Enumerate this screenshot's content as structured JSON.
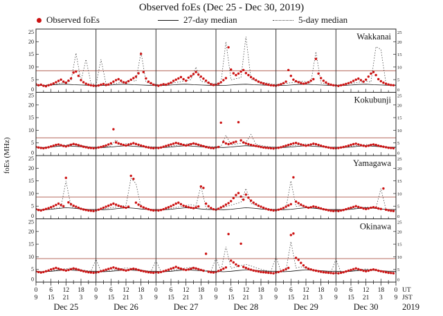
{
  "colors": {
    "observed": "#cc1111",
    "median27": "#111111",
    "median5": "#444444",
    "threshold": "#b5685c",
    "frame": "#222222",
    "day_line": "#333333"
  },
  "chart_data": {
    "type": "scatter",
    "title": "Observed foEs (Dec 25 - Dec 30, 2019)",
    "legend": {
      "observed": "Observed foEs",
      "median27": "27-day median",
      "median5": "5-day median"
    },
    "ylabel": "foEs (MHz)",
    "ylim": [
      0,
      25
    ],
    "y_ticks": [
      0,
      5,
      10,
      15,
      20,
      25
    ],
    "x_hours_total": 144,
    "x_tick_step_minor": 3,
    "x_tick_step_label": 6,
    "x_axis": {
      "ut_name": "UT",
      "jst_name": "JST",
      "year": "2019",
      "jst_offset": 9,
      "day_labels": [
        "Dec 25",
        "Dec 26",
        "Dec 27",
        "Dec 28",
        "Dec 29",
        "Dec 30"
      ],
      "ut_labels": [
        "0",
        "6",
        "12",
        "18",
        "0",
        "6",
        "12",
        "18",
        "0",
        "6",
        "12",
        "18",
        "0",
        "6",
        "12",
        "18",
        "0",
        "6",
        "12",
        "18",
        "0",
        "6",
        "12",
        "18",
        "0"
      ],
      "jst_labels": [
        "9",
        "15",
        "21",
        "3",
        "9",
        "15",
        "21",
        "3",
        "9",
        "15",
        "21",
        "3",
        "9",
        "15",
        "21",
        "3",
        "9",
        "15",
        "21",
        "3",
        "9",
        "15",
        "21",
        "3",
        "9"
      ]
    },
    "panels": [
      {
        "station": "Wakkanai",
        "threshold": 8.5,
        "observed_hourly": [
          3.2,
          2.8,
          3.0,
          2.6,
          2.4,
          2.8,
          3.1,
          3.5,
          4.0,
          4.5,
          5.0,
          4.2,
          3.8,
          4.6,
          5.5,
          7.8,
          8.2,
          6.5,
          4.8,
          4.0,
          3.4,
          3.0,
          2.8,
          2.6,
          2.5,
          2.7,
          3.0,
          3.3,
          2.9,
          3.1,
          3.6,
          4.2,
          4.8,
          5.2,
          4.6,
          4.0,
          3.8,
          4.4,
          5.0,
          5.6,
          6.2,
          7.5,
          15.2,
          8.0,
          5.5,
          4.2,
          3.6,
          3.0,
          2.8,
          2.6,
          2.9,
          3.2,
          3.0,
          3.4,
          3.8,
          4.5,
          5.0,
          5.5,
          6.0,
          5.2,
          4.6,
          5.8,
          6.4,
          7.2,
          8.0,
          7.0,
          6.2,
          5.4,
          4.6,
          3.8,
          3.2,
          2.9,
          3.0,
          3.4,
          4.0,
          4.8,
          5.6,
          17.8,
          9.0,
          7.5,
          6.8,
          7.4,
          8.2,
          8.8,
          7.6,
          6.8,
          6.0,
          5.4,
          4.8,
          4.2,
          3.8,
          3.5,
          3.2,
          3.0,
          2.8,
          2.7,
          2.6,
          2.9,
          3.2,
          3.6,
          4.2,
          8.8,
          6.5,
          5.0,
          4.4,
          4.0,
          3.7,
          3.4,
          3.6,
          4.0,
          4.6,
          5.2,
          13.2,
          7.4,
          5.6,
          4.6,
          3.9,
          3.3,
          3.0,
          2.8,
          2.7,
          2.5,
          2.8,
          3.0,
          3.3,
          3.6,
          4.0,
          4.5,
          5.0,
          5.4,
          4.8,
          4.2,
          5.0,
          6.2,
          7.4,
          8.0,
          6.8,
          5.2,
          4.4,
          3.8,
          3.4,
          3.1,
          2.9,
          2.8
        ],
        "median27_3h": [
          2.8,
          2.7,
          2.9,
          3.1,
          3.2,
          3.0,
          2.9,
          2.8,
          2.8,
          2.7,
          2.9,
          3.1,
          3.2,
          3.0,
          2.9,
          2.8,
          2.8,
          2.7,
          2.9,
          3.1,
          3.2,
          3.0,
          2.9,
          2.8,
          2.8,
          2.7,
          2.9,
          3.1,
          3.2,
          3.0,
          2.9,
          2.8,
          2.8,
          2.7,
          2.9,
          3.1,
          3.2,
          3.0,
          2.9,
          2.8,
          2.8,
          2.7,
          2.9,
          3.1,
          3.2,
          3.0,
          2.9,
          2.8,
          2.8
        ],
        "median5_2h": [
          3.0,
          2.8,
          2.9,
          3.1,
          3.3,
          3.6,
          4.0,
          4.6,
          15.5,
          4.4,
          13.0,
          3.6,
          3.0,
          13.0,
          3.4,
          3.2,
          3.5,
          3.9,
          4.3,
          4.7,
          4.4,
          16.0,
          4.0,
          3.4,
          3.1,
          3.0,
          3.3,
          3.6,
          3.9,
          4.2,
          4.6,
          5.0,
          10.0,
          4.4,
          3.9,
          3.5,
          3.3,
          3.7,
          20.0,
          4.9,
          5.4,
          5.8,
          22.0,
          5.2,
          4.6,
          4.1,
          3.7,
          3.4,
          3.0,
          3.2,
          3.5,
          3.8,
          4.1,
          4.4,
          4.2,
          3.9,
          16.0,
          3.7,
          3.4,
          3.1,
          2.9,
          3.0,
          3.2,
          3.5,
          3.8,
          4.1,
          4.4,
          4.1,
          18.0,
          17.0,
          3.4,
          3.0,
          2.9
        ]
      },
      {
        "station": "Kokubunji",
        "threshold": 7.0,
        "observed_hourly": [
          3.4,
          3.2,
          3.0,
          2.9,
          3.1,
          3.3,
          3.6,
          3.9,
          4.2,
          4.4,
          4.1,
          3.8,
          3.6,
          3.9,
          4.3,
          4.6,
          4.4,
          4.1,
          3.8,
          3.5,
          3.3,
          3.1,
          3.0,
          2.9,
          3.0,
          3.2,
          3.4,
          3.7,
          4.0,
          4.4,
          4.8,
          10.4,
          5.2,
          4.8,
          4.5,
          4.2,
          4.0,
          4.3,
          4.6,
          4.9,
          4.6,
          4.3,
          4.0,
          3.7,
          3.4,
          3.2,
          3.0,
          2.9,
          3.1,
          3.0,
          3.2,
          3.5,
          3.8,
          4.1,
          4.4,
          4.7,
          5.0,
          4.8,
          4.5,
          4.2,
          4.0,
          4.2,
          4.5,
          4.8,
          4.6,
          4.3,
          4.0,
          3.7,
          3.4,
          3.2,
          3.0,
          2.9,
          3.2,
          3.4,
          13.0,
          5.4,
          4.8,
          4.5,
          4.8,
          5.2,
          5.5,
          13.2,
          6.0,
          5.2,
          4.8,
          4.5,
          4.2,
          4.0,
          3.8,
          3.6,
          3.4,
          3.2,
          3.1,
          3.0,
          2.9,
          2.8,
          3.0,
          3.1,
          3.3,
          3.6,
          3.9,
          4.2,
          4.5,
          4.8,
          5.0,
          4.7,
          4.4,
          4.1,
          3.9,
          4.1,
          4.4,
          4.7,
          4.5,
          4.2,
          3.9,
          3.6,
          3.4,
          3.2,
          3.0,
          2.9,
          2.9,
          3.0,
          3.2,
          3.4,
          3.6,
          3.9,
          4.2,
          4.5,
          4.7,
          4.4,
          4.1,
          3.9,
          3.7,
          3.9,
          4.2,
          4.4,
          4.2,
          3.9,
          3.7,
          3.5,
          3.3,
          3.1,
          3.0,
          2.9
        ],
        "median27_3h": [
          3.3,
          3.2,
          3.4,
          3.7,
          3.9,
          3.7,
          3.5,
          3.3,
          3.3,
          3.2,
          3.4,
          3.7,
          3.9,
          3.7,
          3.5,
          3.3,
          3.3,
          3.2,
          3.4,
          3.7,
          3.9,
          3.7,
          3.5,
          3.3,
          3.3,
          3.2,
          3.4,
          3.7,
          3.9,
          3.7,
          3.5,
          3.3,
          3.3,
          3.2,
          3.4,
          3.7,
          3.9,
          3.7,
          3.5,
          3.3,
          3.3,
          3.2,
          3.4,
          3.7,
          3.9,
          3.7,
          3.5,
          3.3,
          3.3
        ],
        "median5_2h": [
          3.4,
          3.2,
          3.1,
          3.3,
          3.6,
          3.9,
          4.2,
          4.5,
          4.3,
          4.0,
          3.7,
          3.4,
          3.2,
          3.3,
          3.5,
          3.8,
          6.2,
          4.4,
          4.7,
          4.9,
          4.6,
          4.2,
          3.8,
          3.5,
          3.3,
          3.2,
          3.4,
          3.7,
          4.0,
          4.3,
          4.6,
          4.8,
          4.5,
          4.1,
          3.8,
          3.5,
          3.4,
          3.6,
          8.0,
          4.3,
          4.6,
          4.9,
          5.2,
          8.4,
          4.4,
          4.0,
          3.7,
          3.4,
          3.2,
          3.3,
          3.5,
          3.8,
          4.1,
          4.4,
          4.6,
          4.4,
          4.1,
          3.8,
          3.5,
          3.3,
          3.1,
          3.2,
          3.4,
          3.6,
          3.9,
          4.2,
          4.4,
          4.2,
          3.9,
          3.6,
          3.4,
          3.2,
          3.1
        ]
      },
      {
        "station": "Yamagawa",
        "threshold": 8.6,
        "observed_hourly": [
          3.8,
          3.5,
          3.3,
          3.6,
          3.9,
          4.2,
          4.6,
          5.0,
          5.5,
          6.0,
          5.5,
          5.0,
          16.2,
          6.5,
          5.8,
          5.2,
          4.8,
          4.4,
          4.0,
          3.7,
          3.5,
          3.3,
          3.2,
          3.1,
          3.3,
          3.6,
          4.0,
          4.4,
          4.8,
          5.2,
          5.6,
          6.0,
          5.6,
          5.2,
          4.9,
          4.6,
          4.4,
          4.8,
          17.0,
          15.8,
          6.4,
          5.6,
          5.0,
          4.5,
          4.1,
          3.8,
          3.5,
          3.3,
          3.4,
          3.3,
          3.5,
          3.8,
          4.2,
          4.6,
          5.0,
          5.5,
          6.0,
          6.4,
          5.8,
          5.2,
          4.9,
          4.6,
          4.4,
          4.2,
          4.5,
          4.9,
          12.8,
          12.2,
          6.0,
          5.0,
          4.3,
          3.8,
          3.6,
          4.0,
          4.5,
          5.0,
          5.6,
          6.2,
          7.0,
          8.2,
          9.4,
          10.2,
          8.8,
          7.6,
          9.6,
          8.4,
          7.2,
          6.4,
          5.8,
          5.2,
          4.8,
          4.4,
          4.0,
          3.7,
          3.5,
          3.3,
          3.4,
          3.6,
          3.9,
          4.3,
          4.8,
          5.3,
          5.8,
          16.4,
          6.8,
          6.2,
          5.6,
          5.1,
          4.7,
          4.4,
          4.6,
          4.9,
          4.7,
          4.4,
          4.1,
          3.8,
          3.6,
          3.4,
          3.2,
          3.1,
          3.2,
          3.1,
          3.3,
          3.5,
          3.8,
          4.1,
          4.4,
          4.7,
          5.0,
          4.7,
          4.4,
          4.1,
          3.9,
          4.1,
          4.4,
          4.6,
          4.4,
          4.1,
          3.9,
          12.0,
          3.6,
          3.4,
          3.2,
          3.1
        ],
        "median27_3h": [
          3.7,
          3.6,
          3.8,
          4.1,
          4.4,
          4.2,
          3.9,
          3.7,
          3.7,
          3.6,
          3.8,
          4.1,
          4.4,
          4.2,
          3.9,
          3.7,
          3.7,
          3.6,
          3.8,
          4.1,
          4.4,
          4.2,
          3.9,
          3.7,
          3.7,
          3.6,
          3.8,
          4.1,
          4.4,
          4.2,
          3.9,
          3.7,
          3.7,
          3.6,
          3.8,
          4.1,
          4.4,
          4.2,
          3.9,
          3.7,
          3.7,
          3.6,
          3.8,
          4.1,
          4.4,
          4.2,
          3.9,
          3.7,
          3.7
        ],
        "median5_2h": [
          3.8,
          3.6,
          3.7,
          3.9,
          4.2,
          4.6,
          15.0,
          4.8,
          4.4,
          4.1,
          3.8,
          3.6,
          3.6,
          3.8,
          4.1,
          4.4,
          4.7,
          5.0,
          5.3,
          16.0,
          14.0,
          4.6,
          4.2,
          3.8,
          3.7,
          3.6,
          3.8,
          4.1,
          4.5,
          4.9,
          5.3,
          5.6,
          5.2,
          13.0,
          4.2,
          3.8,
          3.9,
          4.3,
          4.8,
          5.4,
          6.0,
          6.6,
          12.0,
          6.0,
          5.4,
          4.8,
          4.3,
          3.9,
          3.7,
          3.9,
          4.2,
          15.0,
          4.9,
          5.2,
          4.9,
          4.5,
          4.2,
          3.9,
          3.7,
          3.5,
          3.4,
          3.5,
          3.7,
          3.9,
          4.2,
          4.5,
          4.7,
          4.5,
          4.2,
          12.0,
          3.6,
          3.4,
          3.4
        ]
      },
      {
        "station": "Okinawa",
        "threshold": 9.3,
        "observed_hourly": [
          4.2,
          4.0,
          3.8,
          4.0,
          4.3,
          4.6,
          5.0,
          5.3,
          5.6,
          5.3,
          5.0,
          4.8,
          4.6,
          4.8,
          5.1,
          5.4,
          5.2,
          4.9,
          4.6,
          4.3,
          4.1,
          3.9,
          3.8,
          3.7,
          3.8,
          4.0,
          4.3,
          4.6,
          4.9,
          5.2,
          5.5,
          5.8,
          5.5,
          5.2,
          5.0,
          4.8,
          4.6,
          4.8,
          5.1,
          5.3,
          5.1,
          4.8,
          4.5,
          4.3,
          4.1,
          3.9,
          3.8,
          3.7,
          3.9,
          3.8,
          4.0,
          4.3,
          4.6,
          4.9,
          5.3,
          5.6,
          6.0,
          5.6,
          5.3,
          5.0,
          4.8,
          5.0,
          5.3,
          5.6,
          5.4,
          5.1,
          4.8,
          4.5,
          11.2,
          4.1,
          3.9,
          3.8,
          4.0,
          4.4,
          4.8,
          5.3,
          5.8,
          19.0,
          8.5,
          7.8,
          7.0,
          6.4,
          15.2,
          6.0,
          5.6,
          5.2,
          4.9,
          4.6,
          4.4,
          4.2,
          4.0,
          3.9,
          3.8,
          3.7,
          3.6,
          3.5,
          3.8,
          4.0,
          4.3,
          4.7,
          5.1,
          5.6,
          18.6,
          19.2,
          9.6,
          8.8,
          7.6,
          6.6,
          5.8,
          5.3,
          5.0,
          4.7,
          4.5,
          4.3,
          4.1,
          3.9,
          3.8,
          3.7,
          3.6,
          3.5,
          3.6,
          3.5,
          3.7,
          3.9,
          4.2,
          4.5,
          4.8,
          5.1,
          5.4,
          5.1,
          4.8,
          4.5,
          4.3,
          4.5,
          4.8,
          5.0,
          4.8,
          4.5,
          4.3,
          4.1,
          3.9,
          3.7,
          3.6,
          3.5
        ],
        "median27_3h": [
          4.3,
          4.1,
          4.3,
          4.6,
          4.9,
          4.7,
          4.5,
          4.3,
          4.3,
          4.1,
          4.3,
          4.6,
          4.9,
          4.7,
          4.5,
          4.3,
          4.3,
          4.1,
          4.3,
          4.6,
          4.9,
          4.7,
          4.5,
          4.3,
          4.3,
          4.1,
          4.3,
          4.6,
          4.9,
          4.7,
          4.5,
          4.3,
          4.3,
          4.1,
          4.3,
          4.6,
          4.9,
          4.7,
          4.5,
          4.3,
          4.3,
          4.1,
          4.3,
          4.6,
          4.9,
          4.7,
          4.5,
          4.3,
          4.3
        ],
        "median5_2h": [
          4.2,
          4.0,
          4.1,
          4.4,
          4.7,
          5.0,
          5.3,
          5.5,
          5.2,
          4.9,
          4.6,
          4.3,
          9.0,
          4.2,
          4.4,
          4.7,
          5.0,
          5.3,
          5.6,
          5.4,
          5.1,
          4.8,
          4.5,
          4.2,
          8.5,
          4.1,
          4.3,
          4.6,
          4.9,
          5.3,
          5.6,
          5.8,
          5.4,
          5.0,
          4.6,
          4.3,
          9.5,
          4.5,
          14.0,
          5.4,
          6.0,
          6.5,
          7.0,
          6.4,
          5.7,
          5.1,
          4.6,
          4.2,
          10.0,
          4.3,
          4.6,
          16.0,
          5.6,
          6.0,
          5.6,
          5.1,
          4.7,
          4.4,
          4.1,
          3.9,
          9.0,
          3.9,
          4.1,
          4.4,
          4.7,
          5.0,
          5.2,
          5.0,
          4.7,
          4.4,
          4.1,
          3.9,
          4.0
        ]
      }
    ]
  }
}
